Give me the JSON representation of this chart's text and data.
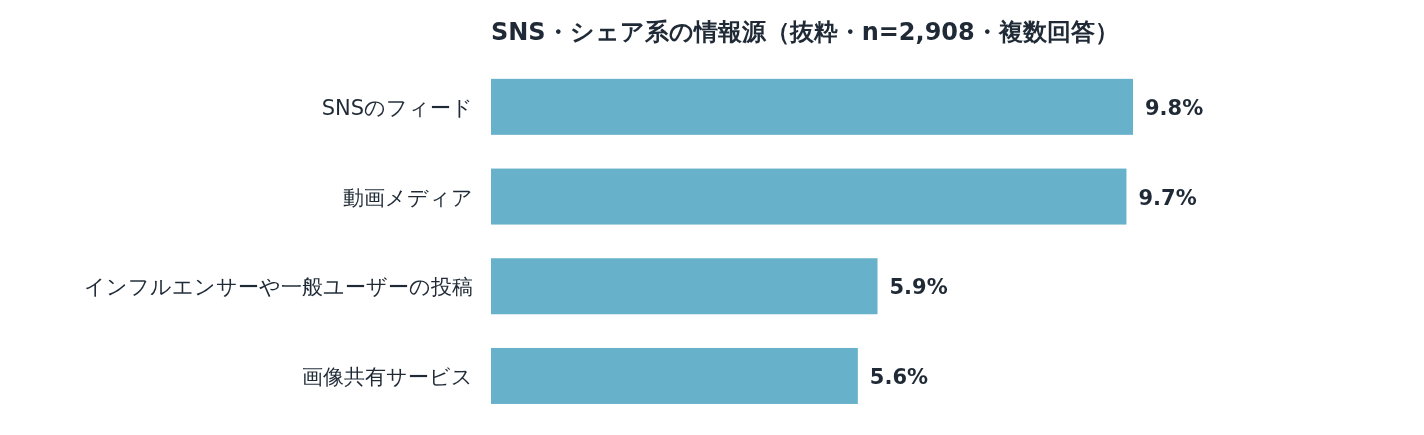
{
  "chart_data": {
    "type": "bar",
    "orientation": "horizontal",
    "title": "SNS・シェア系の情報源（抜粋・n=2,908・複数回答）",
    "categories": [
      "SNSのフィード",
      "動画メディア",
      "インフルエンサーや一般ユーザーの投稿",
      "画像共有サービス"
    ],
    "values": [
      9.8,
      9.7,
      5.9,
      5.6
    ],
    "value_labels": [
      "9.8%",
      "9.7%",
      "5.9%",
      "5.6%"
    ],
    "color": "#67b1ca"
  }
}
